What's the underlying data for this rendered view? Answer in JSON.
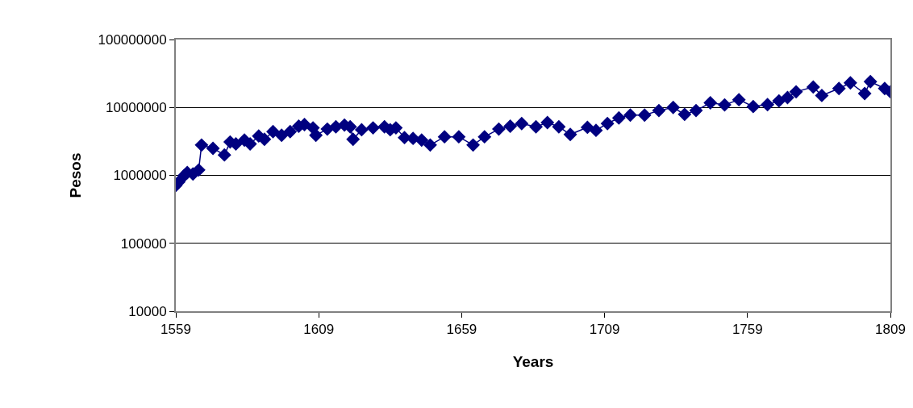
{
  "chart_data": {
    "type": "line",
    "xlabel": "Years",
    "ylabel": "Pesos",
    "log": "y",
    "grid": "y",
    "marker": "diamond",
    "line_style": "solid",
    "xlim": [
      1559,
      1809
    ],
    "xticks": [
      1559,
      1609,
      1659,
      1709,
      1759,
      1809
    ],
    "ylim": [
      10000,
      100000000
    ],
    "yticks": [
      10000,
      100000,
      1000000,
      10000000,
      100000000
    ],
    "x": [
      1559,
      1560,
      1562,
      1563,
      1565,
      1567,
      1568,
      1572,
      1576,
      1578,
      1580,
      1583,
      1585,
      1588,
      1590,
      1593,
      1596,
      1599,
      1602,
      1604,
      1607,
      1608,
      1612,
      1615,
      1618,
      1620,
      1621,
      1624,
      1628,
      1632,
      1634,
      1636,
      1639,
      1642,
      1645,
      1648,
      1653,
      1658,
      1663,
      1667,
      1672,
      1676,
      1680,
      1685,
      1689,
      1693,
      1697,
      1703,
      1706,
      1710,
      1714,
      1718,
      1723,
      1728,
      1733,
      1737,
      1741,
      1746,
      1751,
      1756,
      1761,
      1766,
      1770,
      1773,
      1776,
      1782,
      1785,
      1791,
      1795,
      1800,
      1802,
      1807,
      1809
    ],
    "series": [
      {
        "color": "#000080",
        "values": [
          710000,
          800000,
          1000000,
          1100000,
          1050000,
          1200000,
          2800000,
          2500000,
          2000000,
          3100000,
          2900000,
          3300000,
          2900000,
          3800000,
          3400000,
          4400000,
          3900000,
          4400000,
          5300000,
          5600000,
          5000000,
          3900000,
          4800000,
          5200000,
          5500000,
          5200000,
          3400000,
          4700000,
          5000000,
          5200000,
          4700000,
          5000000,
          3600000,
          3500000,
          3300000,
          2800000,
          3700000,
          3700000,
          2800000,
          3700000,
          4800000,
          5300000,
          5800000,
          5200000,
          6000000,
          5200000,
          4000000,
          5100000,
          4600000,
          5800000,
          7000000,
          7700000,
          7700000,
          9000000,
          10000000,
          7900000,
          9000000,
          11700000,
          10900000,
          13000000,
          10300000,
          11000000,
          12500000,
          14000000,
          17000000,
          20000000,
          15000000,
          19000000,
          23000000,
          16000000,
          24000000,
          19000000,
          17000000
        ]
      }
    ]
  }
}
